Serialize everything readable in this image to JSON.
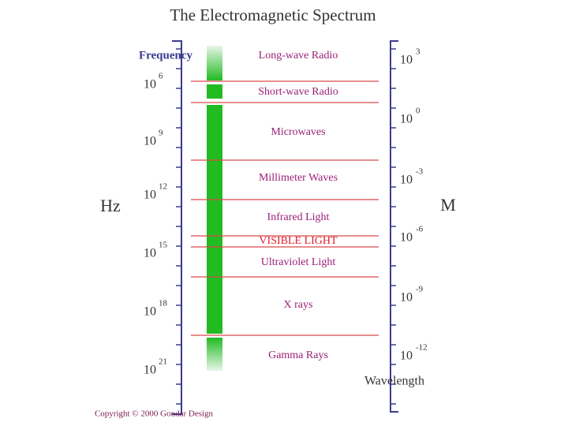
{
  "title": "The Electromagnetic Spectrum",
  "frequency_axis": {
    "label": "Frequency",
    "unit": "Hz",
    "ticks": [
      {
        "base": "10",
        "exponent": "6"
      },
      {
        "base": "10",
        "exponent": "9"
      },
      {
        "base": "10",
        "exponent": "12"
      },
      {
        "base": "10",
        "exponent": "15"
      },
      {
        "base": "10",
        "exponent": "18"
      },
      {
        "base": "10",
        "exponent": "21"
      }
    ]
  },
  "wavelength_axis": {
    "label": "Wavelength",
    "unit": "M",
    "ticks": [
      {
        "base": "10",
        "exponent": "3"
      },
      {
        "base": "10",
        "exponent": "0"
      },
      {
        "base": "10",
        "exponent": "-3"
      },
      {
        "base": "10",
        "exponent": "-6"
      },
      {
        "base": "10",
        "exponent": "-9"
      },
      {
        "base": "10",
        "exponent": "-12"
      }
    ]
  },
  "bands": [
    "Long-wave Radio",
    "Short-wave Radio",
    "Microwaves",
    "Millimeter Waves",
    "Infrared Light",
    "VISIBLE LIGHT",
    "Ultraviolet Light",
    "X rays",
    "Gamma Rays"
  ],
  "copyright": "Copyright © 2000 Gondar Design"
}
